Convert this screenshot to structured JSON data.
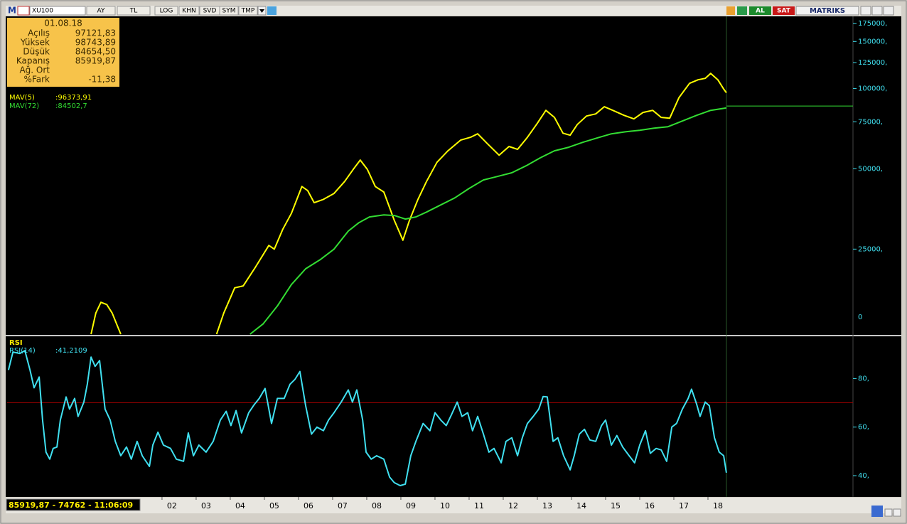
{
  "toolbar": {
    "logo": "M",
    "symbol": "XU100",
    "buttons": [
      "AY",
      "TL",
      "LOG",
      "KHN",
      "SVD",
      "SYM",
      "TMP"
    ],
    "trade_buttons": [
      "AL",
      "SAT"
    ],
    "brand": "MATRIKS"
  },
  "info_box": {
    "date": "01.08.18",
    "rows": [
      [
        "Açılış",
        "97121,83"
      ],
      [
        "Yüksek",
        "98743,89"
      ],
      [
        "Düşük",
        "84654,50"
      ],
      [
        "Kapanış",
        "85919,87"
      ],
      [
        "Ağ. Ort",
        ""
      ],
      [
        "%Fark",
        "-11,38"
      ]
    ]
  },
  "status": "85919,87 - 74762 - 11:06:09",
  "chart_data": [
    {
      "type": "line",
      "yscale": "log",
      "ylim": [
        12000,
        184000
      ],
      "yticks": [
        {
          "value": 175000,
          "label": "175000,"
        },
        {
          "value": 150000,
          "label": "150000,"
        },
        {
          "value": 125000,
          "label": "125000,"
        },
        {
          "value": 100000,
          "label": "100000,"
        },
        {
          "value": 75000,
          "label": "75000,"
        },
        {
          "value": 50000,
          "label": "50000,"
        },
        {
          "value": 25000,
          "label": "25000,"
        }
      ],
      "floor_label": "0",
      "xlim": [
        1997.46,
        2022.25
      ],
      "xticks": [
        {
          "value": 2002,
          "label": "02"
        },
        {
          "value": 2003,
          "label": "03"
        },
        {
          "value": 2004,
          "label": "04"
        },
        {
          "value": 2005,
          "label": "05"
        },
        {
          "value": 2006,
          "label": "06"
        },
        {
          "value": 2007,
          "label": "07"
        },
        {
          "value": 2008,
          "label": "08"
        },
        {
          "value": 2009,
          "label": "09"
        },
        {
          "value": 2010,
          "label": "10"
        },
        {
          "value": 2011,
          "label": "11"
        },
        {
          "value": 2012,
          "label": "12"
        },
        {
          "value": 2013,
          "label": "13"
        },
        {
          "value": 2014,
          "label": "14"
        },
        {
          "value": 2015,
          "label": "15"
        },
        {
          "value": 2016,
          "label": "16"
        },
        {
          "value": 2017,
          "label": "17"
        },
        {
          "value": 2018,
          "label": "18"
        }
      ],
      "cursor_x": 2018.54,
      "last_close": 85919.87,
      "last_close_color": "#33dd33",
      "series": [
        {
          "name": "MAV(5)",
          "value_label": ":96373,91",
          "color": "#ffff00",
          "x": [
            1999.92,
            2000.06,
            2000.21,
            2000.38,
            2000.54,
            2000.69,
            2000.79,
            2002.0,
            2003.6,
            2003.81,
            2004.13,
            2004.38,
            2004.75,
            2005.13,
            2005.29,
            2005.54,
            2005.79,
            2006.1,
            2006.27,
            2006.46,
            2006.73,
            2007.04,
            2007.35,
            2007.6,
            2007.81,
            2008.02,
            2008.25,
            2008.5,
            2008.81,
            2009.06,
            2009.25,
            2009.5,
            2009.75,
            2010.06,
            2010.38,
            2010.75,
            2011.04,
            2011.25,
            2011.54,
            2011.88,
            2012.17,
            2012.42,
            2012.71,
            2013.0,
            2013.25,
            2013.5,
            2013.75,
            2013.96,
            2014.17,
            2014.44,
            2014.71,
            2014.96,
            2015.21,
            2015.54,
            2015.83,
            2016.1,
            2016.38,
            2016.63,
            2016.88,
            2017.15,
            2017.46,
            2017.71,
            2017.92,
            2018.08,
            2018.29,
            2018.46,
            2018.54
          ],
          "values": [
            12000,
            14400,
            15800,
            15500,
            14400,
            12900,
            12000,
            null,
            12000,
            14400,
            17900,
            18200,
            21500,
            25800,
            25000,
            29700,
            34000,
            42900,
            41400,
            37300,
            38400,
            40400,
            44800,
            49700,
            53900,
            49700,
            42900,
            40900,
            32000,
            27000,
            32000,
            38400,
            44800,
            52900,
            58400,
            64000,
            65600,
            67600,
            62000,
            56200,
            60600,
            59100,
            65600,
            74100,
            82800,
            77900,
            68000,
            66800,
            73200,
            78800,
            80300,
            85400,
            82800,
            79300,
            76900,
            81300,
            82800,
            77900,
            77400,
            92400,
            104500,
            107800,
            109100,
            113900,
            107800,
            99500,
            96400
          ]
        },
        {
          "name": "MAV(72)",
          "value_label": ":84502,7",
          "color": "#33dd33",
          "x": [
            2004.58,
            2004.96,
            2005.38,
            2005.79,
            2006.21,
            2006.63,
            2007.04,
            2007.46,
            2007.77,
            2008.08,
            2008.5,
            2008.81,
            2009.13,
            2009.44,
            2009.75,
            2010.17,
            2010.58,
            2011.0,
            2011.42,
            2011.83,
            2012.25,
            2012.67,
            2013.08,
            2013.5,
            2013.92,
            2014.33,
            2014.75,
            2015.17,
            2015.58,
            2016.0,
            2016.42,
            2016.83,
            2017.25,
            2017.67,
            2018.08,
            2018.54
          ],
          "values": [
            12000,
            13100,
            15300,
            18400,
            21100,
            22800,
            25000,
            29200,
            31400,
            33000,
            33600,
            33400,
            32400,
            33000,
            34400,
            36600,
            38900,
            42200,
            45400,
            46800,
            48300,
            51300,
            54900,
            58400,
            60200,
            62800,
            65200,
            67600,
            68800,
            69700,
            71000,
            71900,
            75500,
            79300,
            82800,
            84500
          ]
        }
      ]
    },
    {
      "type": "line",
      "title": "RSI",
      "ylim": [
        31.8,
        96.8
      ],
      "yticks": [
        {
          "value": 80,
          "label": "80,"
        },
        {
          "value": 60,
          "label": "60,"
        },
        {
          "value": 40,
          "label": "40,"
        }
      ],
      "level": 70,
      "level_color": "#a00000",
      "xlim": [
        1997.46,
        2022.25
      ],
      "cursor_x": 2018.54,
      "series": [
        {
          "name": "RSI(14)",
          "value_label": ":41,2109",
          "color": "#40e0f0",
          "x": [
            1997.5,
            1997.63,
            1997.83,
            1997.98,
            1998.13,
            1998.25,
            1998.4,
            1998.5,
            1998.6,
            1998.71,
            1998.81,
            1998.92,
            1999.02,
            1999.19,
            1999.29,
            1999.44,
            1999.54,
            1999.71,
            1999.81,
            1999.92,
            2000.04,
            2000.17,
            2000.33,
            2000.48,
            2000.63,
            2000.79,
            2000.96,
            2001.1,
            2001.27,
            2001.42,
            2001.63,
            2001.73,
            2001.88,
            2002.04,
            2002.25,
            2002.42,
            2002.63,
            2002.77,
            2002.92,
            2003.08,
            2003.29,
            2003.5,
            2003.71,
            2003.88,
            2004.02,
            2004.17,
            2004.33,
            2004.54,
            2004.71,
            2004.85,
            2005.02,
            2005.21,
            2005.38,
            2005.58,
            2005.75,
            2005.9,
            2006.04,
            2006.21,
            2006.38,
            2006.54,
            2006.73,
            2006.88,
            2007.04,
            2007.25,
            2007.46,
            2007.58,
            2007.71,
            2007.88,
            2007.98,
            2008.13,
            2008.29,
            2008.5,
            2008.67,
            2008.81,
            2008.98,
            2009.13,
            2009.29,
            2009.44,
            2009.65,
            2009.85,
            2010.0,
            2010.17,
            2010.33,
            2010.48,
            2010.65,
            2010.79,
            2010.96,
            2011.1,
            2011.25,
            2011.42,
            2011.58,
            2011.73,
            2011.94,
            2012.08,
            2012.25,
            2012.42,
            2012.56,
            2012.71,
            2012.88,
            2013.04,
            2013.17,
            2013.29,
            2013.46,
            2013.6,
            2013.77,
            2013.96,
            2014.08,
            2014.23,
            2014.38,
            2014.54,
            2014.71,
            2014.88,
            2015.0,
            2015.17,
            2015.33,
            2015.5,
            2015.69,
            2015.85,
            2016.0,
            2016.17,
            2016.31,
            2016.48,
            2016.63,
            2016.79,
            2016.94,
            2017.08,
            2017.25,
            2017.42,
            2017.52,
            2017.67,
            2017.77,
            2017.92,
            2018.04,
            2018.19,
            2018.33,
            2018.46,
            2018.54
          ],
          "values": [
            83.5,
            90.9,
            90.3,
            91.5,
            83.5,
            76.2,
            80.6,
            62.9,
            49.7,
            46.8,
            51.2,
            51.8,
            62.9,
            72.4,
            67.4,
            71.8,
            64.4,
            70.3,
            77.6,
            88.8,
            85.0,
            87.4,
            67.4,
            62.9,
            54.1,
            48.2,
            51.8,
            46.8,
            54.1,
            48.2,
            43.8,
            52.6,
            57.9,
            52.6,
            51.2,
            46.8,
            45.9,
            57.6,
            48.2,
            52.6,
            49.7,
            54.1,
            62.9,
            66.5,
            60.6,
            66.8,
            57.6,
            65.9,
            69.4,
            71.8,
            75.9,
            61.5,
            71.8,
            71.8,
            77.6,
            79.7,
            82.9,
            68.8,
            57.1,
            60.0,
            58.5,
            62.9,
            65.9,
            70.3,
            75.3,
            70.3,
            75.3,
            62.9,
            49.7,
            46.8,
            48.2,
            46.8,
            39.4,
            37.1,
            35.9,
            36.5,
            48.2,
            54.1,
            61.5,
            58.5,
            65.9,
            62.9,
            60.6,
            65.0,
            70.3,
            64.4,
            65.9,
            58.5,
            64.4,
            57.1,
            49.7,
            51.2,
            45.3,
            54.1,
            55.6,
            48.2,
            55.6,
            61.5,
            64.4,
            67.4,
            72.6,
            72.4,
            54.1,
            55.6,
            48.2,
            42.4,
            48.2,
            57.1,
            59.1,
            54.7,
            54.1,
            60.6,
            62.9,
            52.6,
            56.5,
            51.8,
            48.2,
            45.3,
            52.6,
            58.5,
            49.2,
            51.2,
            50.6,
            45.9,
            60.0,
            61.5,
            67.4,
            71.8,
            75.6,
            69.4,
            64.4,
            70.3,
            68.8,
            55.6,
            49.7,
            48.2,
            41.2
          ]
        }
      ]
    }
  ]
}
